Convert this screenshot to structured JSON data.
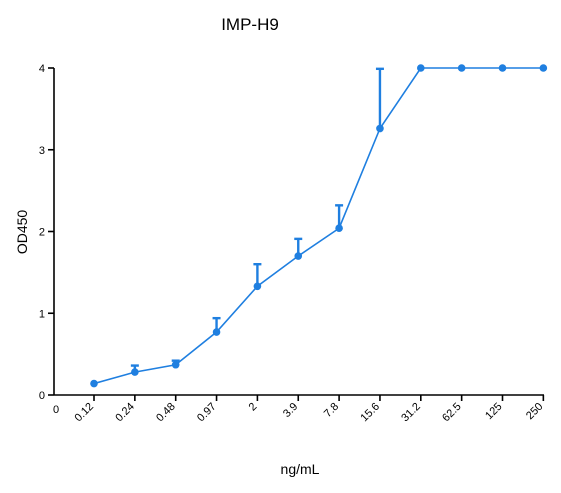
{
  "chart_data": {
    "type": "line",
    "title": "IMP-H9",
    "xlabel": "ng/mL",
    "ylabel": "OD450",
    "ylim": [
      0,
      4
    ],
    "yticks": [
      "0",
      "1",
      "2",
      "3",
      "4"
    ],
    "x_origin_label": "0",
    "categories": [
      "0.12",
      "0.24",
      "0.48",
      "0.97",
      "2",
      "3.9",
      "7.8",
      "15.6",
      "31.2",
      "62.5",
      "125",
      "250"
    ],
    "series": [
      {
        "values": [
          0.14,
          0.28,
          0.37,
          0.77,
          1.33,
          1.7,
          2.04,
          3.26,
          4.0,
          4.0,
          4.0,
          4.0
        ],
        "errors": [
          0,
          0.08,
          0.05,
          0.17,
          0.27,
          0.21,
          0.28,
          0.73,
          0,
          0,
          0,
          0
        ]
      }
    ],
    "color": "#1f7fe0",
    "grid": false
  }
}
